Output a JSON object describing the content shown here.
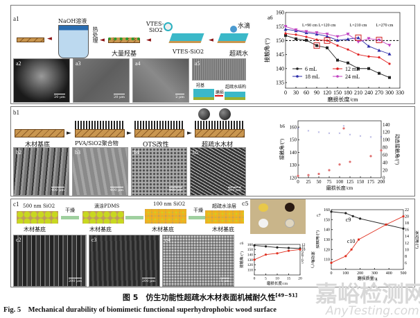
{
  "panel_a": {
    "label": "a1",
    "schematic": {
      "naoh": "NaOH溶液",
      "heat": "热处理",
      "hydroxyl": "大量羟基",
      "vtes": "VTES-",
      "sio2": "SiO2",
      "vtes_sio2": "VTES-SiO2",
      "water_drop": "水滴",
      "superhydrophobic": "超疏水"
    },
    "sem": [
      {
        "tag": "a2",
        "scale": "20 μm"
      },
      {
        "tag": "a3",
        "scale": "20 μm"
      },
      {
        "tag": "a4",
        "scale": "2 μm"
      },
      {
        "tag": "a5",
        "scale": ""
      }
    ],
    "a5_diagram": {
      "hydroxyl": "羟基",
      "abrasion": "磨损",
      "structure": "超疏水结构"
    }
  },
  "panel_b": {
    "label": "b1",
    "schematic": [
      "木材基底",
      "PVA/SiO2聚合物",
      "OTS改性",
      "超疏水木材"
    ],
    "sem": [
      {
        "tag": "b2",
        "scale": "400 μm"
      },
      {
        "tag": "b3",
        "scale": "400 μm"
      },
      {
        "tag": "b4",
        "scale": "400 μm"
      },
      {
        "tag": "b5",
        "scale": "400 μm"
      }
    ]
  },
  "panel_c": {
    "label": "c1",
    "schematic": {
      "sio2_500": "500 nm SiO2",
      "dry1": "干燥",
      "pdms": "滴涂PDMS",
      "sio2_100": "100 nm SiO2",
      "dry2": "干燥",
      "coating": "超疏水涂层",
      "substrate": "木材基底"
    },
    "sem": [
      {
        "tag": "c2",
        "scale": "200 μm"
      },
      {
        "tag": "c3",
        "scale": "200 μm"
      },
      {
        "tag": "c4",
        "scale": "1 μm"
      }
    ],
    "photo_tag": "c5"
  },
  "chart_data": [
    {
      "id": "a6",
      "type": "line",
      "tag": "a6",
      "xlabel": "磨损长度/cm",
      "ylabel": "接触角/(°)",
      "xlim": [
        0,
        330
      ],
      "ylim": [
        133,
        160
      ],
      "xticks": [
        0,
        30,
        60,
        90,
        120,
        150,
        180,
        210,
        240,
        270,
        300,
        330
      ],
      "yticks": [
        135,
        140,
        145,
        150,
        155,
        160
      ],
      "x": [
        0,
        30,
        60,
        90,
        120,
        150,
        180,
        210,
        240,
        270,
        300
      ],
      "threshold": 150,
      "series": [
        {
          "name": "6 mL",
          "color": "#222222",
          "marker": "square",
          "values": [
            151.8,
            150.6,
            150.1,
            148.2,
            147.4,
            143.0,
            142.0,
            140.0,
            140.0,
            138.3,
            136.8
          ]
        },
        {
          "name": "12 mL",
          "color": "#e02020",
          "marker": "circle",
          "values": [
            152.5,
            152.1,
            151.3,
            150.3,
            150.0,
            148.2,
            146.8,
            145.0,
            144.3,
            144.0,
            141.7
          ]
        },
        {
          "name": "18 mL",
          "color": "#2a2aa8",
          "marker": "triangle",
          "values": [
            154.0,
            153.5,
            152.8,
            152.3,
            151.5,
            150.1,
            150.5,
            151.0,
            148.0,
            146.5,
            145.2
          ]
        },
        {
          "name": "24 mL",
          "color": "#c040c0",
          "marker": "triangle-down",
          "values": [
            155.0,
            153.8,
            153.2,
            152.8,
            152.3,
            151.4,
            152.3,
            149.5,
            150.7,
            150.2,
            148.3
          ]
        }
      ],
      "annotations": [
        {
          "text": "L=90 cm",
          "x": 90,
          "y": 148.2
        },
        {
          "text": "L=120 cm",
          "x": 120,
          "y": 150.0
        },
        {
          "text": "L=210 cm",
          "x": 210,
          "y": 151.0
        },
        {
          "text": "L=270 cm",
          "x": 270,
          "y": 150.2
        }
      ]
    },
    {
      "id": "b6",
      "type": "scatter",
      "tag": "b6",
      "xlabel": "磨损长度/cm",
      "ylabel": "接触角/(°)",
      "y2label": "动态接触角/(°)",
      "xlim": [
        0,
        200
      ],
      "ylim": [
        120,
        165
      ],
      "y2lim": [
        0,
        150
      ],
      "xticks": [
        0,
        25,
        50,
        75,
        100,
        125,
        150,
        175,
        200
      ],
      "yticks": [
        120,
        130,
        140,
        150,
        160
      ],
      "y2ticks": [
        0,
        20,
        40,
        60,
        80,
        100,
        120,
        140
      ],
      "series": [
        {
          "name": "接触角",
          "axis": "left",
          "color": "#6060c0",
          "marker": "x",
          "x": [
            0,
            25,
            50,
            75,
            100,
            110,
            125,
            150,
            175,
            200
          ],
          "values": [
            159,
            157,
            156,
            155,
            155,
            161,
            154,
            153,
            152,
            152
          ]
        },
        {
          "name": "动态接触角",
          "axis": "right",
          "color": "#e07070",
          "marker": "circle",
          "x": [
            0,
            25,
            50,
            75,
            100,
            110,
            125,
            175,
            200
          ],
          "values": [
            5,
            7,
            10,
            20,
            35,
            130,
            42,
            57,
            72
          ]
        }
      ]
    },
    {
      "id": "c6",
      "type": "line",
      "tag": "c6",
      "xlabel": "磨损长度/cm",
      "ylabel": "接触角/(°)",
      "y2label": "滚动角/(°)",
      "xlim": [
        0,
        20
      ],
      "ylim": [
        100,
        160
      ],
      "y2lim": [
        0,
        12
      ],
      "xticks": [
        0,
        5,
        10,
        15,
        20
      ],
      "yticks": [
        110,
        120,
        130,
        140,
        150,
        160
      ],
      "y2ticks": [
        5,
        6,
        7,
        8,
        9,
        10,
        11,
        12
      ],
      "series": [
        {
          "name": "接触角",
          "axis": "left",
          "color": "#222222",
          "x": [
            0,
            5,
            10,
            15,
            20
          ],
          "values": [
            158,
            156,
            154,
            153,
            152
          ]
        },
        {
          "name": "滚动角",
          "axis": "right",
          "color": "#e03020",
          "x": [
            0,
            5,
            10,
            15,
            20
          ],
          "values": [
            6,
            8,
            8.5,
            9.5,
            10
          ]
        }
      ]
    },
    {
      "id": "c7",
      "type": "line",
      "tag": "c7",
      "xlabel": "磨损质量/g",
      "ylabel": "接触角/(°)",
      "y2label": "滚动角/(°)",
      "xlim": [
        0,
        500
      ],
      "ylim": [
        100,
        160
      ],
      "y2lim": [
        4,
        22
      ],
      "xticks": [
        0,
        100,
        200,
        300,
        400,
        500
      ],
      "yticks": [
        110,
        120,
        130,
        140,
        150,
        160
      ],
      "y2ticks": [
        6,
        8,
        10,
        12,
        14,
        16,
        18,
        20,
        22
      ],
      "series": [
        {
          "name": "c9",
          "axis": "left",
          "color": "#222222",
          "x": [
            0,
            100,
            150,
            200,
            380,
            500
          ],
          "values": [
            158,
            156.5,
            153.5,
            151,
            145,
            141
          ]
        },
        {
          "name": "c10",
          "axis": "right",
          "color": "#e03020",
          "x": [
            0,
            100,
            140,
            190,
            380,
            500
          ],
          "values": [
            6,
            8,
            10,
            13,
            17.5,
            20
          ]
        }
      ]
    }
  ],
  "caption": {
    "cn": "图 5　仿生功能性超疏水木材表面机械耐久性",
    "ref": "[49−51]",
    "en": "Fig. 5　Mechanical durability of biomimetic functional superhydrophobic wood surface"
  },
  "watermark": {
    "cn": "嘉峪检测网",
    "en": "AnyTesting.com"
  }
}
